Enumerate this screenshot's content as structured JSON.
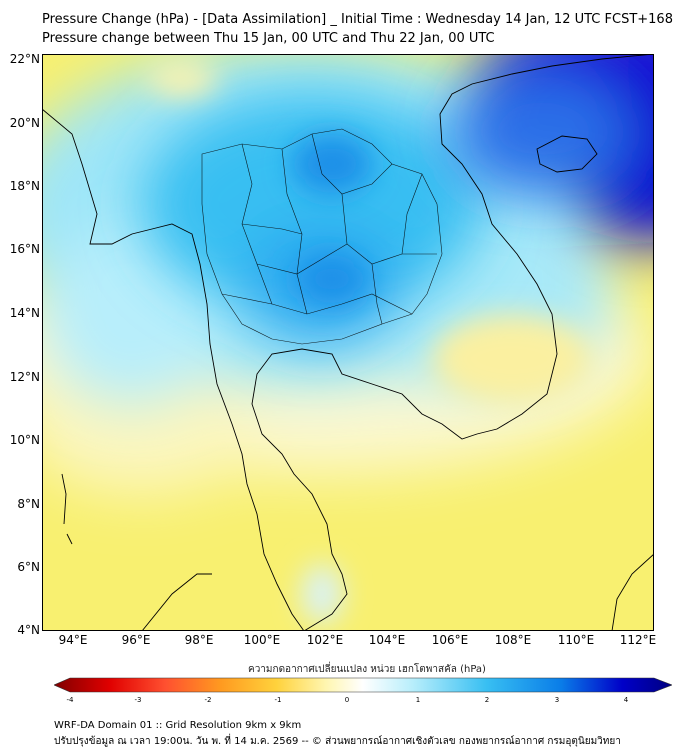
{
  "header": {
    "title_line1": "Pressure Change (hPa) - [Data Assimilation] _ Initial Time : Wednesday 14 Jan, 12 UTC FCST+168",
    "title_line2": "Pressure change between Thu 15 Jan, 00 UTC and Thu 22 Jan, 00 UTC"
  },
  "map": {
    "lat_labels": [
      "22°N",
      "20°N",
      "18°N",
      "16°N",
      "14°N",
      "12°N",
      "10°N",
      "8°N",
      "6°N",
      "4°N"
    ],
    "lon_labels": [
      "94°E",
      "96°E",
      "98°E",
      "100°E",
      "102°E",
      "104°E",
      "106°E",
      "108°E",
      "110°E",
      "112°E"
    ],
    "lat_range": [
      4,
      22.3
    ],
    "lon_range": [
      93,
      112.5
    ],
    "field_colors": {
      "strong_negative": "#1a10d8",
      "negative": "#2aa0f0",
      "weak_negative": "#9fe8f8",
      "neutral": "#ffffff",
      "weak_positive": "#fbf5b0",
      "positive": "#f4ec5a"
    }
  },
  "colorbar": {
    "title": "ความกดอากาศเปลี่ยนแปลง หน่วย เฮกโตพาสคัล (hPa)",
    "ticks": [
      "-4",
      "-3",
      "-2",
      "-1",
      "0",
      "1",
      "2",
      "3",
      "4"
    ],
    "range": [
      -4,
      4.5
    ],
    "stops": [
      "#800000",
      "#e00000",
      "#ff5030",
      "#ff9a20",
      "#ffd23c",
      "#fff6b0",
      "#ffffff",
      "#b8eefb",
      "#38bff2",
      "#0a7de8",
      "#0000c8",
      "#000080"
    ]
  },
  "footer": {
    "line1": "WRF-DA Domain 01 :: Grid Resolution 9km x 9km",
    "line2": "ปรับปรุงข้อมูล ณ เวลา 19:00น. วัน พ. ที่ 14 ม.ค. 2569 -- © ส่วนพยากรณ์อากาศเชิงตัวเลข กองพยากรณ์อากาศ กรมอุตุนิยมวิทยา"
  }
}
